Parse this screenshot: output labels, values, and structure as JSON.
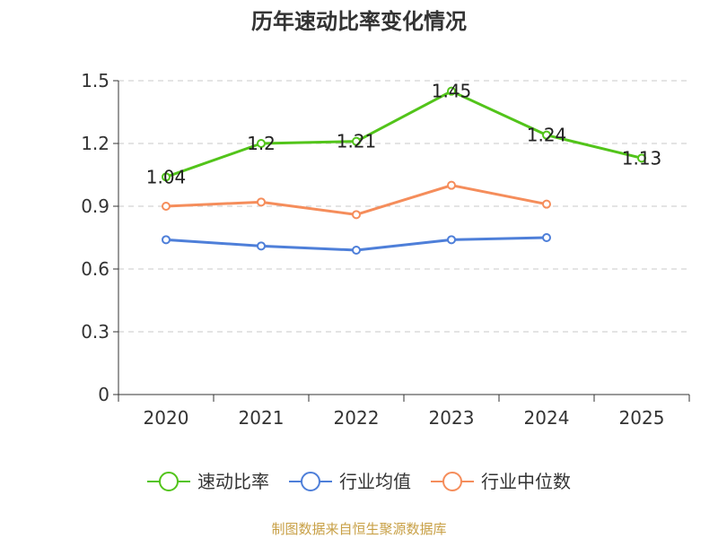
{
  "chart_data": {
    "type": "line",
    "title": "历年速动比率变化情况",
    "categories": [
      "2020",
      "2021",
      "2022",
      "2023",
      "2024",
      "2025"
    ],
    "ylim": [
      0,
      1.5
    ],
    "yticks": [
      "0",
      "0.3",
      "0.6",
      "0.9",
      "1.2",
      "1.5"
    ],
    "ytick_values": [
      0,
      0.3,
      0.6,
      0.9,
      1.2,
      1.5
    ],
    "grid": true,
    "legend_position": "bottom",
    "series": [
      {
        "name": "速动比率",
        "color": "#52C41A",
        "values": [
          1.04,
          1.2,
          1.21,
          1.45,
          1.24,
          1.13
        ],
        "labels": [
          "1.04",
          "1.2",
          "1.21",
          "1.45",
          "1.24",
          "1.13"
        ],
        "show_labels": true
      },
      {
        "name": "行业均值",
        "color": "#4E7FD9",
        "values": [
          0.74,
          0.71,
          0.69,
          0.74,
          0.75,
          null
        ],
        "show_labels": false
      },
      {
        "name": "行业中位数",
        "color": "#F58D5B",
        "values": [
          0.9,
          0.92,
          0.86,
          1.0,
          0.91,
          null
        ],
        "show_labels": false
      }
    ]
  },
  "source": "制图数据来自恒生聚源数据库"
}
